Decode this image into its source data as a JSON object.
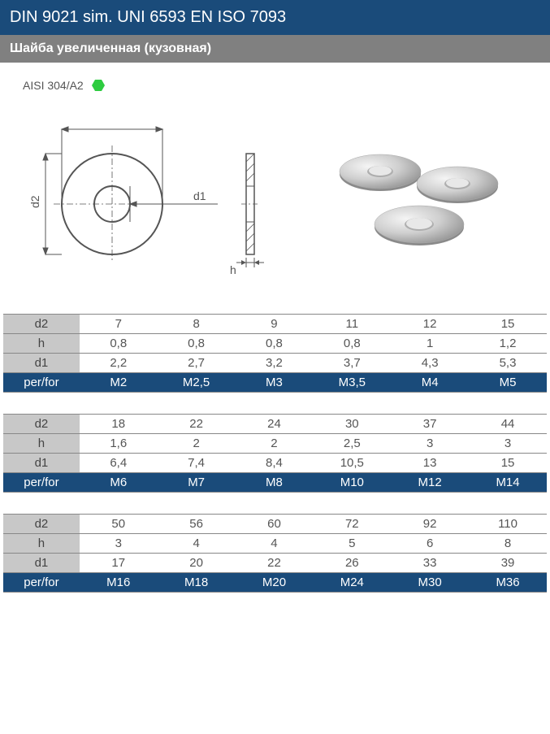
{
  "header": {
    "title": "DIN 9021 sim. UNI 6593 EN ISO 7093"
  },
  "subtitle": "Шайба увеличенная (кузовная)",
  "material": {
    "label": "AISI 304/A2",
    "icon_color": "#2ecc40"
  },
  "colors": {
    "header_bg": "#1a4b7a",
    "subtitle_bg": "#808080",
    "row_label_bg": "#c8c8c8",
    "perfor_bg": "#1a4b7a",
    "text_light": "#ffffff",
    "text_dark": "#555555",
    "border": "#888888"
  },
  "diagram": {
    "labels": {
      "d2": "d2",
      "d1": "d1",
      "h": "h"
    }
  },
  "tables": {
    "row_labels": {
      "d2": "d2",
      "h": "h",
      "d1": "d1",
      "perfor": "per/for"
    },
    "groups": [
      {
        "d2": [
          "7",
          "8",
          "9",
          "11",
          "12",
          "15"
        ],
        "h": [
          "0,8",
          "0,8",
          "0,8",
          "0,8",
          "1",
          "1,2"
        ],
        "d1": [
          "2,2",
          "2,7",
          "3,2",
          "3,7",
          "4,3",
          "5,3"
        ],
        "perfor": [
          "M2",
          "M2,5",
          "M3",
          "M3,5",
          "M4",
          "M5"
        ]
      },
      {
        "d2": [
          "18",
          "22",
          "24",
          "30",
          "37",
          "44"
        ],
        "h": [
          "1,6",
          "2",
          "2",
          "2,5",
          "3",
          "3"
        ],
        "d1": [
          "6,4",
          "7,4",
          "8,4",
          "10,5",
          "13",
          "15"
        ],
        "perfor": [
          "M6",
          "M7",
          "M8",
          "M10",
          "M12",
          "M14"
        ]
      },
      {
        "d2": [
          "50",
          "56",
          "60",
          "72",
          "92",
          "110"
        ],
        "h": [
          "3",
          "4",
          "4",
          "5",
          "6",
          "8"
        ],
        "d1": [
          "17",
          "20",
          "22",
          "26",
          "33",
          "39"
        ],
        "perfor": [
          "M16",
          "M18",
          "M20",
          "M24",
          "M30",
          "M36"
        ]
      }
    ]
  }
}
